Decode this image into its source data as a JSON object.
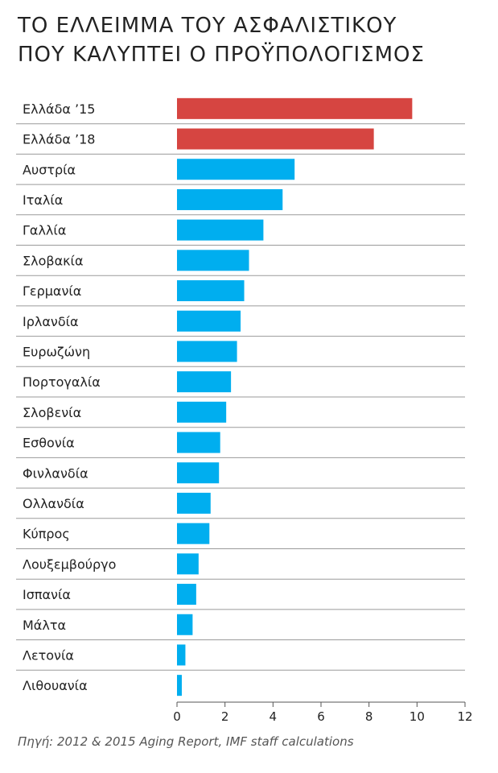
{
  "title_lines": [
    "ΤΟ ΕΛΛΕΙΜΜΑ ΤΟΥ ΑΣΦΑΛΙΣΤΙΚΟΥ",
    "ΠΟΥ ΚΑΛΥΠΤΕΙ Ο ΠΡΟΫΠΟΛΟΓΙΣΜΟΣ"
  ],
  "source": "Πηγή: 2012 & 2015 Aging Report, IMF staff calculations",
  "colors": {
    "greece": "#d64541",
    "others": "#00aeef",
    "grid": "#9a9a9a",
    "text": "#222222"
  },
  "chart_data": {
    "type": "bar",
    "orientation": "horizontal",
    "categories": [
      "Ελλάδα ’15",
      "Ελλάδα ’18",
      "Αυστρία",
      "Ιταλία",
      "Γαλλία",
      "Σλοβακία",
      "Γερμανία",
      "Ιρλανδία",
      "Ευρωζώνη",
      "Πορτογαλία",
      "Σλοβενία",
      "Εσθονία",
      "Φινλανδία",
      "Ολλανδία",
      "Κύπρος",
      "Λουξεμβούργο",
      "Ισπανία",
      "Μάλτα",
      "Λετονία",
      "Λιθουανία"
    ],
    "values": [
      9.8,
      8.2,
      4.9,
      4.4,
      3.6,
      3.0,
      2.8,
      2.65,
      2.5,
      2.25,
      2.05,
      1.8,
      1.75,
      1.4,
      1.35,
      0.9,
      0.8,
      0.65,
      0.35,
      0.2
    ],
    "xlim": [
      0,
      12
    ],
    "xticks": [
      0,
      2,
      4,
      6,
      8,
      10,
      12
    ],
    "highlight": [
      "Ελλάδα ’15",
      "Ελλάδα ’18"
    ],
    "grid": "horizontal row separators",
    "legend": "none",
    "xlabel": "",
    "ylabel": ""
  }
}
